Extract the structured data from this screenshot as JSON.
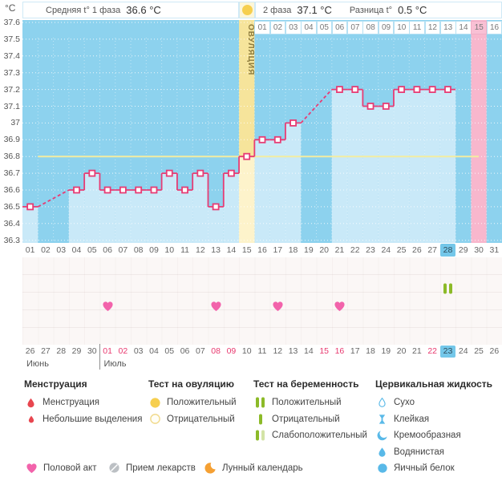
{
  "header": {
    "unit": "°C",
    "avg1_label": "Средняя t° 1 фаза",
    "avg1_value": "36.6 °C",
    "phase2_label": "2 фаза",
    "phase2_value": "37.1 °C",
    "diff_label": "Разница t°",
    "diff_value": "0.5 °C"
  },
  "chart_data": {
    "type": "line",
    "title": "График базальной температуры",
    "ylabel": "°C",
    "ylim": [
      36.3,
      37.6
    ],
    "ytick_step": 0.1,
    "yticks": [
      "37.6",
      "37.5",
      "37.4",
      "37.3",
      "37.2",
      "37.1",
      "37",
      "36.9",
      "36.8",
      "36.7",
      "36.6",
      "36.5",
      "36.4",
      "36.3"
    ],
    "grid": "dotted-white",
    "day_labels": [
      "01",
      "02",
      "03",
      "04",
      "05",
      "06",
      "07",
      "08",
      "09",
      "10",
      "11",
      "12",
      "13",
      "14",
      "15",
      "16",
      "17",
      "18",
      "19",
      "20",
      "21",
      "22",
      "23",
      "24",
      "25",
      "26",
      "27",
      "28",
      "29",
      "30",
      "31"
    ],
    "series": [
      {
        "name": "Базальная температура",
        "points": [
          [
            1,
            36.5
          ],
          [
            4,
            36.6
          ],
          [
            5,
            36.7
          ],
          [
            6,
            36.6
          ],
          [
            7,
            36.6
          ],
          [
            8,
            36.6
          ],
          [
            9,
            36.6
          ],
          [
            10,
            36.7
          ],
          [
            11,
            36.6
          ],
          [
            12,
            36.7
          ],
          [
            13,
            36.5
          ],
          [
            14,
            36.7
          ],
          [
            15,
            36.8
          ],
          [
            16,
            36.9
          ],
          [
            17,
            36.9
          ],
          [
            18,
            37.0
          ],
          [
            21,
            37.2
          ],
          [
            22,
            37.2
          ],
          [
            23,
            37.1
          ],
          [
            24,
            37.1
          ],
          [
            25,
            37.2
          ],
          [
            26,
            37.2
          ],
          [
            27,
            37.2
          ],
          [
            28,
            37.2
          ]
        ]
      }
    ],
    "missing_days": [
      2,
      3,
      19,
      20,
      29,
      30,
      31
    ],
    "coverline": 36.8,
    "ovulation_day": 15,
    "ovulation_band_label": "ОВУЛЯЦИЯ",
    "period_expected_day": 30,
    "today_day": 28,
    "phase2_labels": [
      "01",
      "02",
      "03",
      "04",
      "05",
      "06",
      "07",
      "08",
      "09",
      "10",
      "11",
      "12",
      "13",
      "14",
      "15",
      "16"
    ],
    "phase2_highlight": "15",
    "colors": {
      "bg": "#8dd2ee",
      "bar": "#c9e9f8",
      "ovulation_band": "#f6e49b",
      "ovulation_band_light": "#fdf3cb",
      "period_band": "#f8b7cd",
      "line": "#e73c74",
      "marker_fill": "#ffffff",
      "coverline": "#f3eda1",
      "today": "#74c7e9",
      "weekend": "#e8396f"
    }
  },
  "events": {
    "pregnancy_test_days": [
      28
    ],
    "intercourse_days": [
      6,
      13,
      17,
      21
    ]
  },
  "calendar": {
    "dates": [
      "26",
      "27",
      "28",
      "29",
      "30",
      "01",
      "02",
      "03",
      "04",
      "05",
      "06",
      "07",
      "08",
      "09",
      "10",
      "11",
      "12",
      "13",
      "14",
      "15",
      "16",
      "17",
      "18",
      "19",
      "20",
      "21",
      "22",
      "23",
      "24",
      "25",
      "26"
    ],
    "red_indices": [
      5,
      6,
      12,
      13,
      19,
      20,
      26
    ],
    "today_index": 27,
    "divider_index": 5,
    "months": [
      {
        "label": "Июнь",
        "index": 0
      },
      {
        "label": "Июль",
        "index": 5
      }
    ]
  },
  "legend": {
    "groups": [
      {
        "title": "Менструация",
        "items": [
          {
            "icon": "drop-large",
            "label": "Менструация"
          },
          {
            "icon": "drop-small",
            "label": "Небольшие выделения"
          }
        ]
      },
      {
        "title": "Тест на овуляцию",
        "items": [
          {
            "icon": "circle-filled",
            "label": "Положительный"
          },
          {
            "icon": "circle-outline",
            "label": "Отрицательный"
          }
        ]
      },
      {
        "title": "Тест на беременность",
        "items": [
          {
            "icon": "bars-two",
            "label": "Положительный"
          },
          {
            "icon": "bar-one",
            "label": "Отрицательный"
          },
          {
            "icon": "bars-weak",
            "label": "Слабоположительный"
          }
        ]
      },
      {
        "title": "Цервикальная жидкость",
        "items": [
          {
            "icon": "drop-outline",
            "label": "Сухо"
          },
          {
            "icon": "sticky",
            "label": "Клейкая"
          },
          {
            "icon": "creamy",
            "label": "Кремообразная"
          },
          {
            "icon": "watery",
            "label": "Водянистая"
          },
          {
            "icon": "eggwhite",
            "label": "Яичный белок"
          }
        ]
      }
    ],
    "footer": [
      {
        "icon": "heart",
        "label": "Половой акт"
      },
      {
        "icon": "pill",
        "label": "Прием лекарств"
      },
      {
        "icon": "moon",
        "label": "Лунный календарь"
      }
    ]
  }
}
